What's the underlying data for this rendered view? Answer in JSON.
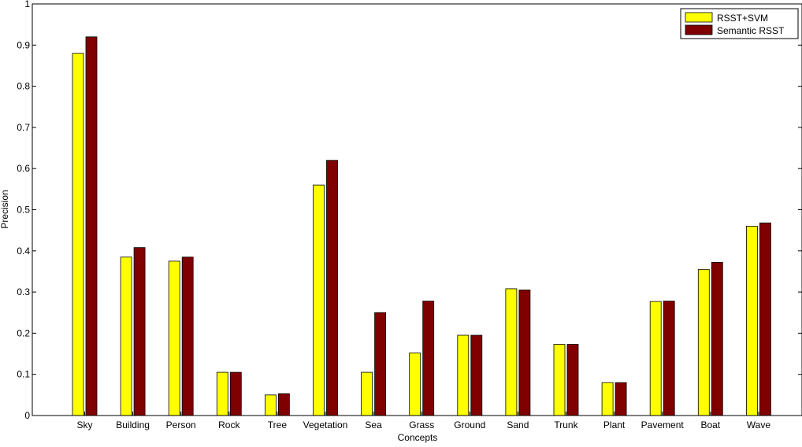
{
  "chart_data": {
    "type": "bar",
    "title": "",
    "xlabel": "Concepts",
    "ylabel": "Precision",
    "ylim": [
      0,
      1
    ],
    "yticks": [
      "0",
      "0.1",
      "0.2",
      "0.3",
      "0.4",
      "0.5",
      "0.6",
      "0.7",
      "0.8",
      "0.9",
      "1"
    ],
    "grid": false,
    "legend_position": "top-right",
    "categories": [
      "Sky",
      "Building",
      "Person",
      "Rock",
      "Tree",
      "Vegetation",
      "Sea",
      "Grass",
      "Ground",
      "Sand",
      "Trunk",
      "Plant",
      "Pavement",
      "Boat",
      "Wave"
    ],
    "series": [
      {
        "name": "RSST+SVM",
        "color": "#ffff00",
        "values": [
          0.88,
          0.385,
          0.375,
          0.105,
          0.05,
          0.56,
          0.105,
          0.152,
          0.195,
          0.308,
          0.173,
          0.08,
          0.277,
          0.355,
          0.46
        ]
      },
      {
        "name": "Semantic RSST",
        "color": "#800000",
        "values": [
          0.92,
          0.408,
          0.385,
          0.105,
          0.053,
          0.62,
          0.25,
          0.278,
          0.195,
          0.305,
          0.173,
          0.08,
          0.278,
          0.372,
          0.468
        ]
      }
    ]
  }
}
